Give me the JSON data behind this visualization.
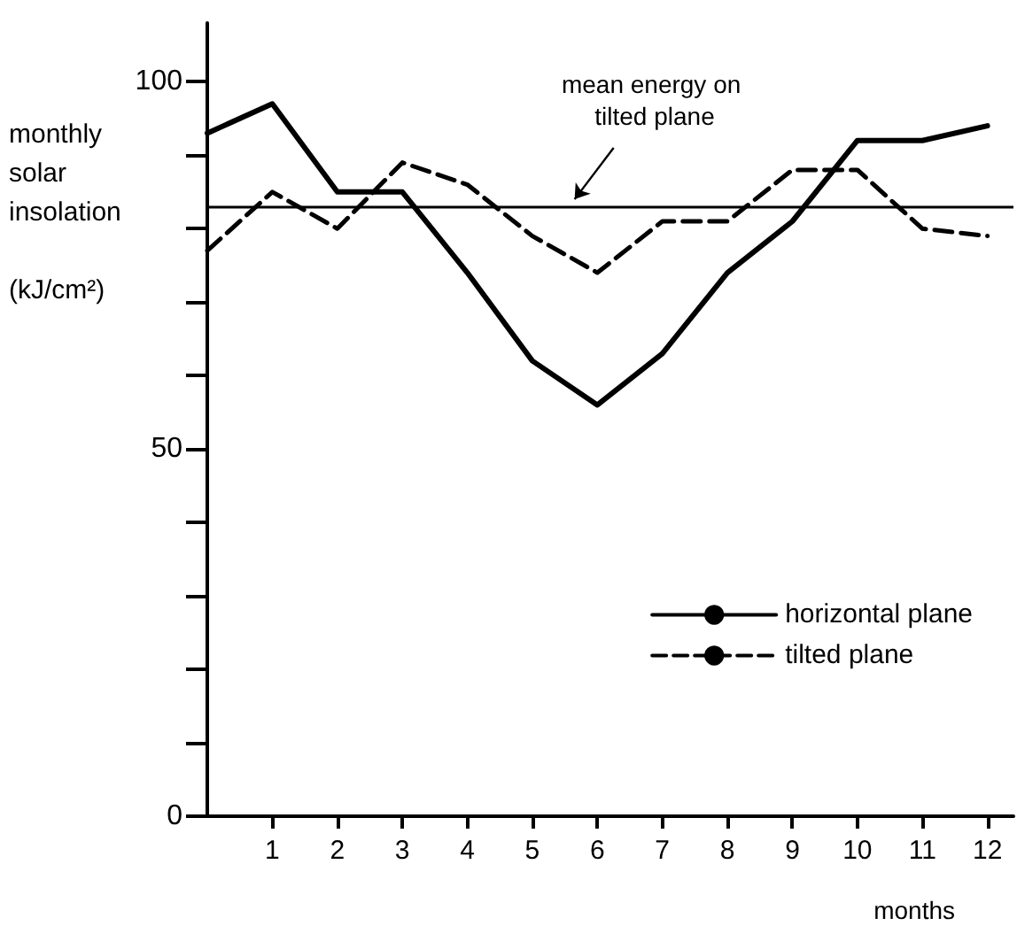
{
  "chart_data": {
    "type": "line",
    "ylabel": "monthly solar insolation (kJ/cm²)",
    "xlabel": "months",
    "x": [
      0,
      1,
      2,
      3,
      4,
      5,
      6,
      7,
      8,
      9,
      10,
      11,
      12
    ],
    "xlim": [
      0,
      12.4
    ],
    "xticks": [
      1,
      2,
      3,
      4,
      5,
      6,
      7,
      8,
      9,
      10,
      11,
      12
    ],
    "ylim": [
      0,
      108
    ],
    "yticks": [
      0,
      {
        "value": 10,
        "label": null
      },
      {
        "value": 20,
        "label": null
      },
      {
        "value": 30,
        "label": null
      },
      {
        "value": 40,
        "label": null
      },
      50,
      {
        "value": 60,
        "label": null
      },
      {
        "value": 70,
        "label": null
      },
      {
        "value": 80,
        "label": null
      },
      {
        "value": 90,
        "label": null
      },
      100
    ],
    "series": [
      {
        "name": "horizontal plane",
        "color": "#000000",
        "line_style": "solid",
        "values": [
          93,
          97,
          85,
          85,
          74,
          62,
          56,
          63,
          74,
          81,
          92,
          92,
          94
        ]
      },
      {
        "name": "tilted plane",
        "color": "#000000",
        "line_style": "dashed",
        "values": [
          77,
          85,
          80,
          89,
          86,
          79,
          74,
          81,
          81,
          88,
          88,
          80,
          79
        ]
      }
    ],
    "ref_lines": [
      {
        "axis": "y",
        "value": 83,
        "label": "mean energy on tilted plane",
        "color": "#000000",
        "line_style": "solid"
      }
    ],
    "marker": "none",
    "legend": "right",
    "grid": false
  }
}
